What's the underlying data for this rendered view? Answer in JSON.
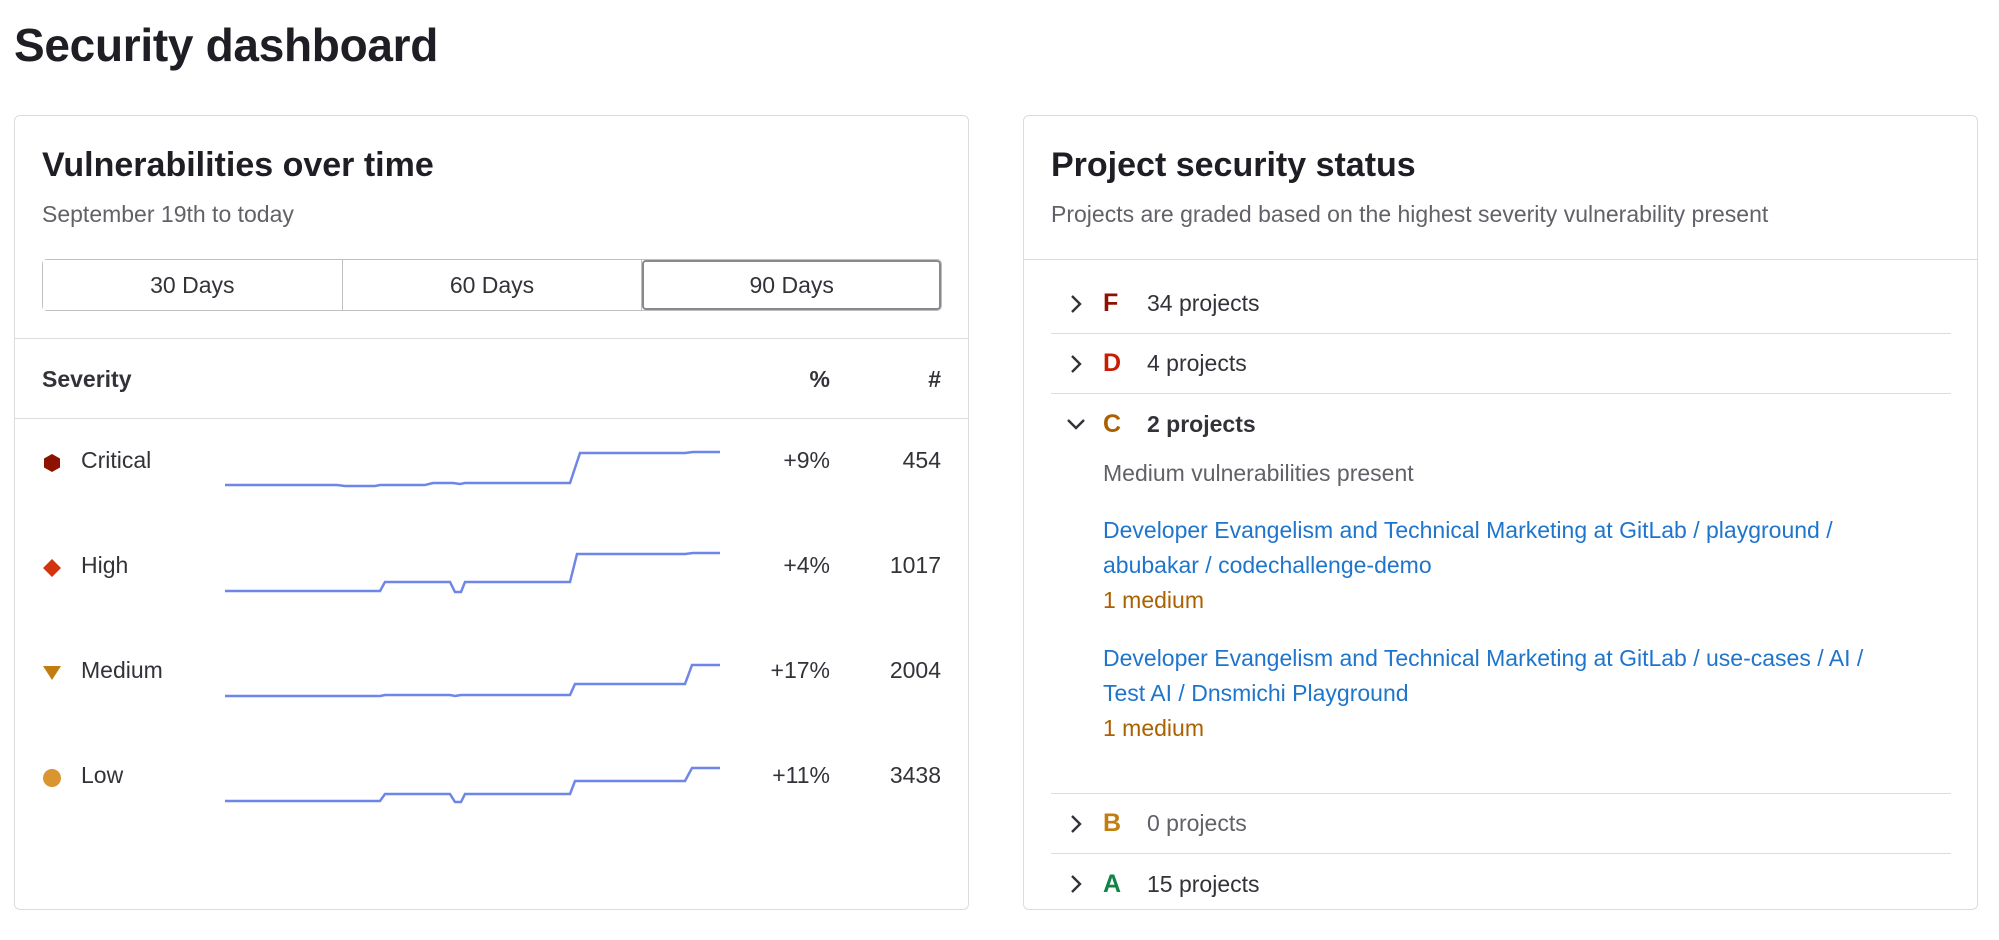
{
  "page": {
    "title": "Security dashboard"
  },
  "colors": {
    "critical": "#8d1300",
    "high": "#d2350e",
    "medium": "#c17d10",
    "low": "#d99530",
    "spark": "#6e86e8",
    "grade_f": "#8d1300",
    "grade_d": "#c91c00",
    "grade_c": "#ab6100",
    "grade_b": "#c17d10",
    "grade_a": "#108548"
  },
  "vuln": {
    "title": "Vulnerabilities over time",
    "subtitle": "September 19th to today",
    "ranges": [
      "30 Days",
      "60 Days",
      "90 Days"
    ],
    "active_range": "90 Days",
    "headers": {
      "severity": "Severity",
      "percent": "%",
      "count": "#"
    },
    "rows": [
      {
        "label": "Critical",
        "icon": "hexagon-icon",
        "pct": "+9%",
        "count": "454"
      },
      {
        "label": "High",
        "icon": "diamond-icon",
        "pct": "+4%",
        "count": "1017"
      },
      {
        "label": "Medium",
        "icon": "triangle-down-icon",
        "pct": "+17%",
        "count": "2004"
      },
      {
        "label": "Low",
        "icon": "circle-icon",
        "pct": "+11%",
        "count": "3438"
      }
    ]
  },
  "status": {
    "title": "Project security status",
    "subtitle": "Projects are graded based on the highest severity vulnerability present",
    "grades": [
      {
        "letter": "F",
        "count": "34 projects",
        "expanded": false
      },
      {
        "letter": "D",
        "count": "4 projects",
        "expanded": false
      },
      {
        "letter": "C",
        "count": "2 projects",
        "expanded": true,
        "description": "Medium vulnerabilities present",
        "projects": [
          {
            "line1": "Developer Evangelism and Technical Marketing at GitLab / playground /",
            "line2": "abubakar / codechallenge-demo",
            "severity": "1 medium"
          },
          {
            "line1": "Developer Evangelism and Technical Marketing at GitLab / use-cases / AI /",
            "line2": "Test AI / Dnsmichi Playground",
            "severity": "1 medium"
          }
        ]
      },
      {
        "letter": "B",
        "count": "0 projects",
        "expanded": false
      },
      {
        "letter": "A",
        "count": "15 projects",
        "expanded": false
      }
    ]
  }
}
